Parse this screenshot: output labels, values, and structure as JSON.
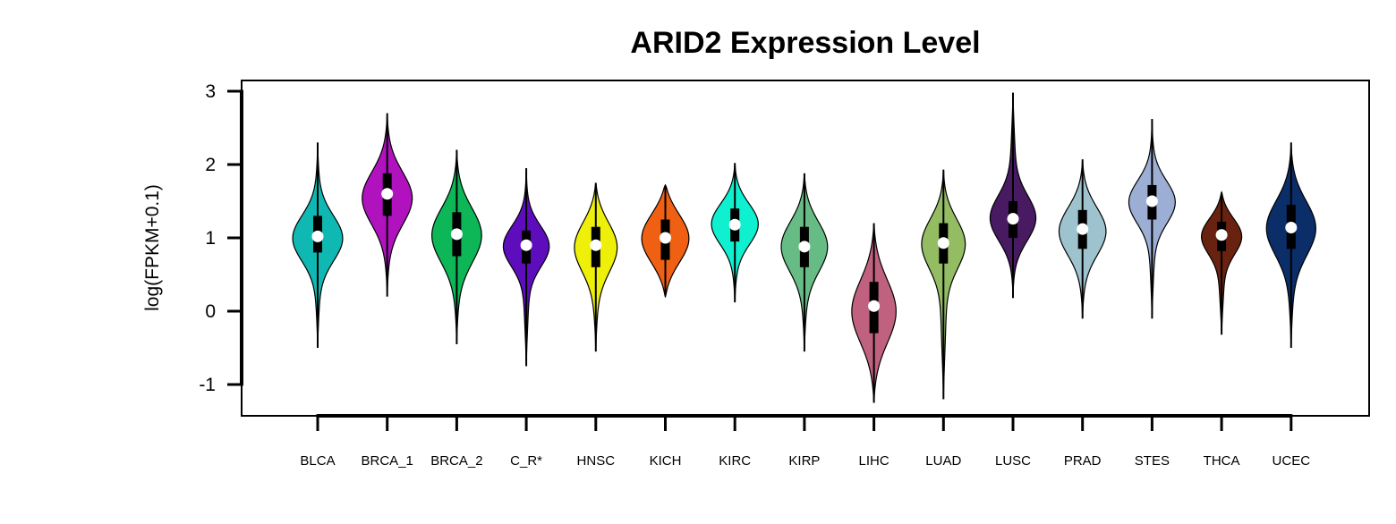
{
  "chart_data": {
    "type": "violin",
    "title": "ARID2 Expression Level",
    "xlabel": "",
    "ylabel": "log(FPKM+0.1)",
    "ylim": [
      -1.4,
      3.1
    ],
    "yticks": [
      -1,
      0,
      1,
      2,
      3
    ],
    "ytick_labels": [
      "-1",
      "0",
      "1",
      "2",
      "3"
    ],
    "grid": false,
    "legend": "none",
    "series": [
      {
        "category": "BLCA",
        "color": "#10B8B4",
        "min": -0.5,
        "max": 2.3,
        "q1": 0.8,
        "median": 1.02,
        "q3": 1.3,
        "mode": 1.0,
        "width": 0.85
      },
      {
        "category": "BRCA_1",
        "color": "#B012BE",
        "min": 0.2,
        "max": 2.7,
        "q1": 1.3,
        "median": 1.6,
        "q3": 1.88,
        "mode": 1.55,
        "width": 0.85
      },
      {
        "category": "BRCA_2",
        "color": "#0DB657",
        "min": -0.45,
        "max": 2.2,
        "q1": 0.75,
        "median": 1.05,
        "q3": 1.35,
        "mode": 1.05,
        "width": 0.85
      },
      {
        "category": "C_R*",
        "color": "#5E0DBD",
        "min": -0.75,
        "max": 1.95,
        "q1": 0.65,
        "median": 0.9,
        "q3": 1.1,
        "mode": 0.9,
        "width": 0.8
      },
      {
        "category": "HNSC",
        "color": "#EFF009",
        "min": -0.55,
        "max": 1.75,
        "q1": 0.6,
        "median": 0.9,
        "q3": 1.15,
        "mode": 0.9,
        "width": 0.75
      },
      {
        "category": "KICH",
        "color": "#F06012",
        "min": 0.2,
        "max": 1.72,
        "q1": 0.7,
        "median": 1.0,
        "q3": 1.25,
        "mode": 1.0,
        "width": 0.8
      },
      {
        "category": "KIRC",
        "color": "#0EF0D0",
        "min": 0.12,
        "max": 2.02,
        "q1": 0.95,
        "median": 1.18,
        "q3": 1.4,
        "mode": 1.2,
        "width": 0.8
      },
      {
        "category": "KIRP",
        "color": "#66BC84",
        "min": -0.55,
        "max": 1.88,
        "q1": 0.6,
        "median": 0.88,
        "q3": 1.15,
        "mode": 0.9,
        "width": 0.8
      },
      {
        "category": "LIHC",
        "color": "#C0617F",
        "min": -1.25,
        "max": 1.2,
        "q1": -0.3,
        "median": 0.07,
        "q3": 0.4,
        "mode": 0.0,
        "width": 0.75
      },
      {
        "category": "LUAD",
        "color": "#93BC63",
        "min": -1.2,
        "max": 1.93,
        "q1": 0.65,
        "median": 0.93,
        "q3": 1.2,
        "mode": 0.95,
        "width": 0.8
      },
      {
        "category": "LUSC",
        "color": "#471A62",
        "min": 0.18,
        "max": 2.98,
        "q1": 1.0,
        "median": 1.26,
        "q3": 1.5,
        "mode": 1.25,
        "width": 0.8
      },
      {
        "category": "PRAD",
        "color": "#9EC3CE",
        "min": -0.1,
        "max": 2.07,
        "q1": 0.85,
        "median": 1.12,
        "q3": 1.38,
        "mode": 1.1,
        "width": 0.8
      },
      {
        "category": "STES",
        "color": "#9DAED4",
        "min": -0.1,
        "max": 2.62,
        "q1": 1.25,
        "median": 1.5,
        "q3": 1.72,
        "mode": 1.5,
        "width": 0.8
      },
      {
        "category": "THCA",
        "color": "#6A2210",
        "min": -0.32,
        "max": 1.62,
        "q1": 0.82,
        "median": 1.04,
        "q3": 1.22,
        "mode": 1.05,
        "width": 0.75
      },
      {
        "category": "UCEC",
        "color": "#0B2D68",
        "min": -0.5,
        "max": 2.3,
        "q1": 0.85,
        "median": 1.14,
        "q3": 1.45,
        "mode": 1.15,
        "width": 0.85
      }
    ]
  }
}
